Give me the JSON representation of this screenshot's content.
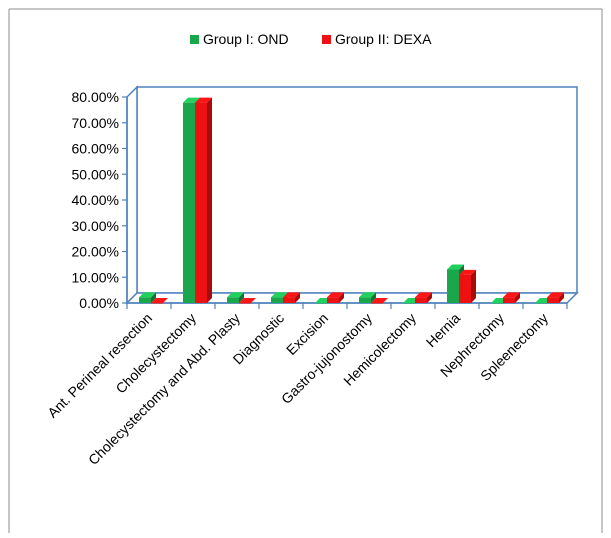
{
  "chart_data": {
    "type": "bar",
    "title": "",
    "xlabel": "",
    "ylabel": "",
    "categories": [
      "Ant. Perineal resection",
      "Cholecystectomy",
      "Cholecystectomy and Abd. Plasty",
      "Diagnostic",
      "Excision",
      "Gastro-jujonostomy",
      "Hemicolectomy",
      "Hernia",
      "Nephrectomy",
      "Spleenectomy"
    ],
    "series": [
      {
        "name": "Group I: OND",
        "color": "#1aa64a",
        "values": [
          2.2,
          77.8,
          2.2,
          2.2,
          0,
          2.2,
          0,
          13.0,
          0,
          0
        ]
      },
      {
        "name": "Group II: DEXA",
        "color": "#ee1111",
        "values": [
          0,
          77.8,
          0,
          2.2,
          2.2,
          0,
          2.2,
          10.9,
          2.2,
          2.2
        ]
      }
    ],
    "ylim": [
      0,
      80
    ],
    "y_ticks": [
      0,
      10,
      20,
      30,
      40,
      50,
      60,
      70,
      80
    ],
    "y_tick_labels": [
      "0.00%",
      "10.00%",
      "20.00%",
      "30.00%",
      "40.00%",
      "50.00%",
      "60.00%",
      "70.00%",
      "80.00%"
    ],
    "grid": false,
    "legend_position": "top-center",
    "style": "3d-clustered"
  }
}
